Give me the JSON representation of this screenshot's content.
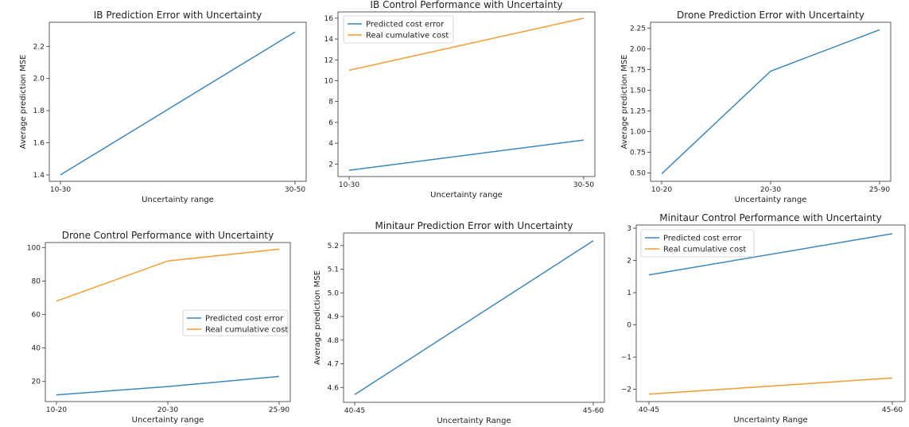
{
  "colors": {
    "series0": "#3a87bf",
    "series1": "#f59b32",
    "axis": "#333333"
  },
  "chart_data": [
    {
      "type": "line",
      "title": "IB Prediction Error with Uncertainty",
      "xlabel": "Uncertainty range",
      "ylabel": "Average prediction MSE",
      "categories": [
        "10-30",
        "30-50"
      ],
      "ylim": [
        1.36,
        2.35
      ],
      "yticks": [
        1.4,
        1.6,
        1.8,
        2.0,
        2.2
      ],
      "ytick_labels": [
        "1.4",
        "1.6",
        "1.8",
        "2.0",
        "2.2"
      ],
      "legend": "none",
      "series": [
        {
          "values": [
            1.4,
            2.29
          ]
        }
      ]
    },
    {
      "type": "line",
      "title": "IB Control Performance with Uncertainty",
      "xlabel": "Uncertainty range",
      "ylabel": "",
      "categories": [
        "10-30",
        "30-50"
      ],
      "ylim": [
        0.8,
        16.6
      ],
      "yticks": [
        2,
        4,
        6,
        8,
        10,
        12,
        14,
        16
      ],
      "ytick_labels": [
        "2",
        "4",
        "6",
        "8",
        "10",
        "12",
        "14",
        "16"
      ],
      "legend": "upper-left",
      "series": [
        {
          "name": "Predicted cost error",
          "values": [
            1.4,
            4.3
          ]
        },
        {
          "name": "Real cumulative cost",
          "values": [
            11.0,
            16.0
          ]
        }
      ]
    },
    {
      "type": "line",
      "title": "Drone Prediction Error with Uncertainty",
      "xlabel": "Uncertainty range",
      "ylabel": "Average prediction MSE",
      "categories": [
        "10-20",
        "20-30",
        "25-90"
      ],
      "ylim": [
        0.4,
        2.32
      ],
      "yticks": [
        0.5,
        0.75,
        1.0,
        1.25,
        1.5,
        1.75,
        2.0,
        2.25
      ],
      "ytick_labels": [
        "0.50",
        "0.75",
        "1.00",
        "1.25",
        "1.50",
        "1.75",
        "2.00",
        "2.25"
      ],
      "legend": "none",
      "series": [
        {
          "values": [
            0.49,
            1.73,
            2.23
          ]
        }
      ]
    },
    {
      "type": "line",
      "title": "Drone Control Performance with Uncertainty",
      "xlabel": "Uncertainty range",
      "ylabel": "",
      "categories": [
        "10-20",
        "20-30",
        "25-90"
      ],
      "ylim": [
        8,
        103
      ],
      "yticks": [
        20,
        40,
        60,
        80,
        100
      ],
      "ytick_labels": [
        "20",
        "40",
        "60",
        "80",
        "100"
      ],
      "legend": "center-right",
      "series": [
        {
          "name": "Predicted cost error",
          "values": [
            12,
            17,
            23
          ]
        },
        {
          "name": "Real cumulative cost",
          "values": [
            68,
            92,
            99
          ]
        }
      ]
    },
    {
      "type": "line",
      "title": "Minitaur Prediction Error with Uncertainty",
      "xlabel": "Uncertainty Range",
      "ylabel": "Average prediction MSE",
      "categories": [
        "40-45",
        "45-60"
      ],
      "ylim": [
        4.537,
        5.253
      ],
      "yticks": [
        4.6,
        4.7,
        4.8,
        4.9,
        5.0,
        5.1,
        5.2
      ],
      "ytick_labels": [
        "4.6",
        "4.7",
        "4.8",
        "4.9",
        "5.0",
        "5.1",
        "5.2"
      ],
      "legend": "none",
      "series": [
        {
          "values": [
            4.57,
            5.22
          ]
        }
      ]
    },
    {
      "type": "line",
      "title": "Minitaur Control Performance with Uncertainty",
      "xlabel": "Uncertainty Range",
      "ylabel": "",
      "categories": [
        "40-45",
        "45-60"
      ],
      "ylim": [
        -2.38,
        3.1
      ],
      "yticks": [
        -2,
        -1,
        0,
        1,
        2,
        3
      ],
      "ytick_labels": [
        "−2",
        "−1",
        "0",
        "1",
        "2",
        "3"
      ],
      "legend": "upper-left",
      "series": [
        {
          "name": "Predicted cost error",
          "values": [
            1.55,
            2.83
          ]
        },
        {
          "name": "Real cumulative cost",
          "values": [
            -2.15,
            -1.65
          ]
        }
      ]
    }
  ]
}
